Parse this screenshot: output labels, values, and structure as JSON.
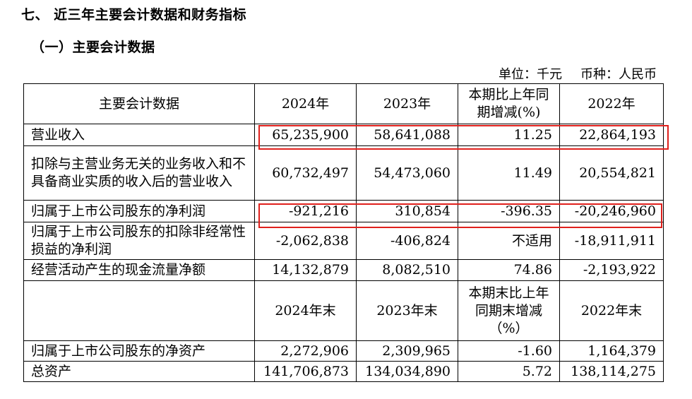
{
  "heading": "七、 近三年主要会计数据和财务指标",
  "subheading": "（一）主要会计数据",
  "unit_line": {
    "unit": "单位：千元",
    "currency": "币种：人民币"
  },
  "table": {
    "header1": [
      "主要会计数据",
      "2024年",
      "2023年",
      "本期比上年同期增减(%)",
      "2022年"
    ],
    "rows1": [
      [
        "营业收入",
        "65,235,900",
        "58,641,088",
        "11.25",
        "22,864,193"
      ],
      [
        "扣除与主营业务无关的业务收入和不具备商业实质的收入后的营业收入",
        "60,732,497",
        "54,473,060",
        "11.49",
        "20,554,821"
      ],
      [
        "归属于上市公司股东的净利润",
        "-921,216",
        "310,854",
        "-396.35",
        "-20,246,960"
      ],
      [
        "归属于上市公司股东的扣除非经常性损益的净利润",
        "-2,062,838",
        "-406,824",
        "不适用",
        "-18,911,911"
      ],
      [
        "经营活动产生的现金流量净额",
        "14,132,879",
        "8,082,510",
        "74.86",
        "-2,193,922"
      ]
    ],
    "header2": [
      "",
      "2024年末",
      "2023年末",
      "本期末比上年同期末增减（%）",
      "2022年末"
    ],
    "rows2": [
      [
        "归属于上市公司股东的净资产",
        "2,272,906",
        "2,309,965",
        "-1.60",
        "1,164,379"
      ],
      [
        "总资产",
        "141,706,873",
        "134,034,890",
        "5.72",
        "138,114,275"
      ]
    ]
  }
}
